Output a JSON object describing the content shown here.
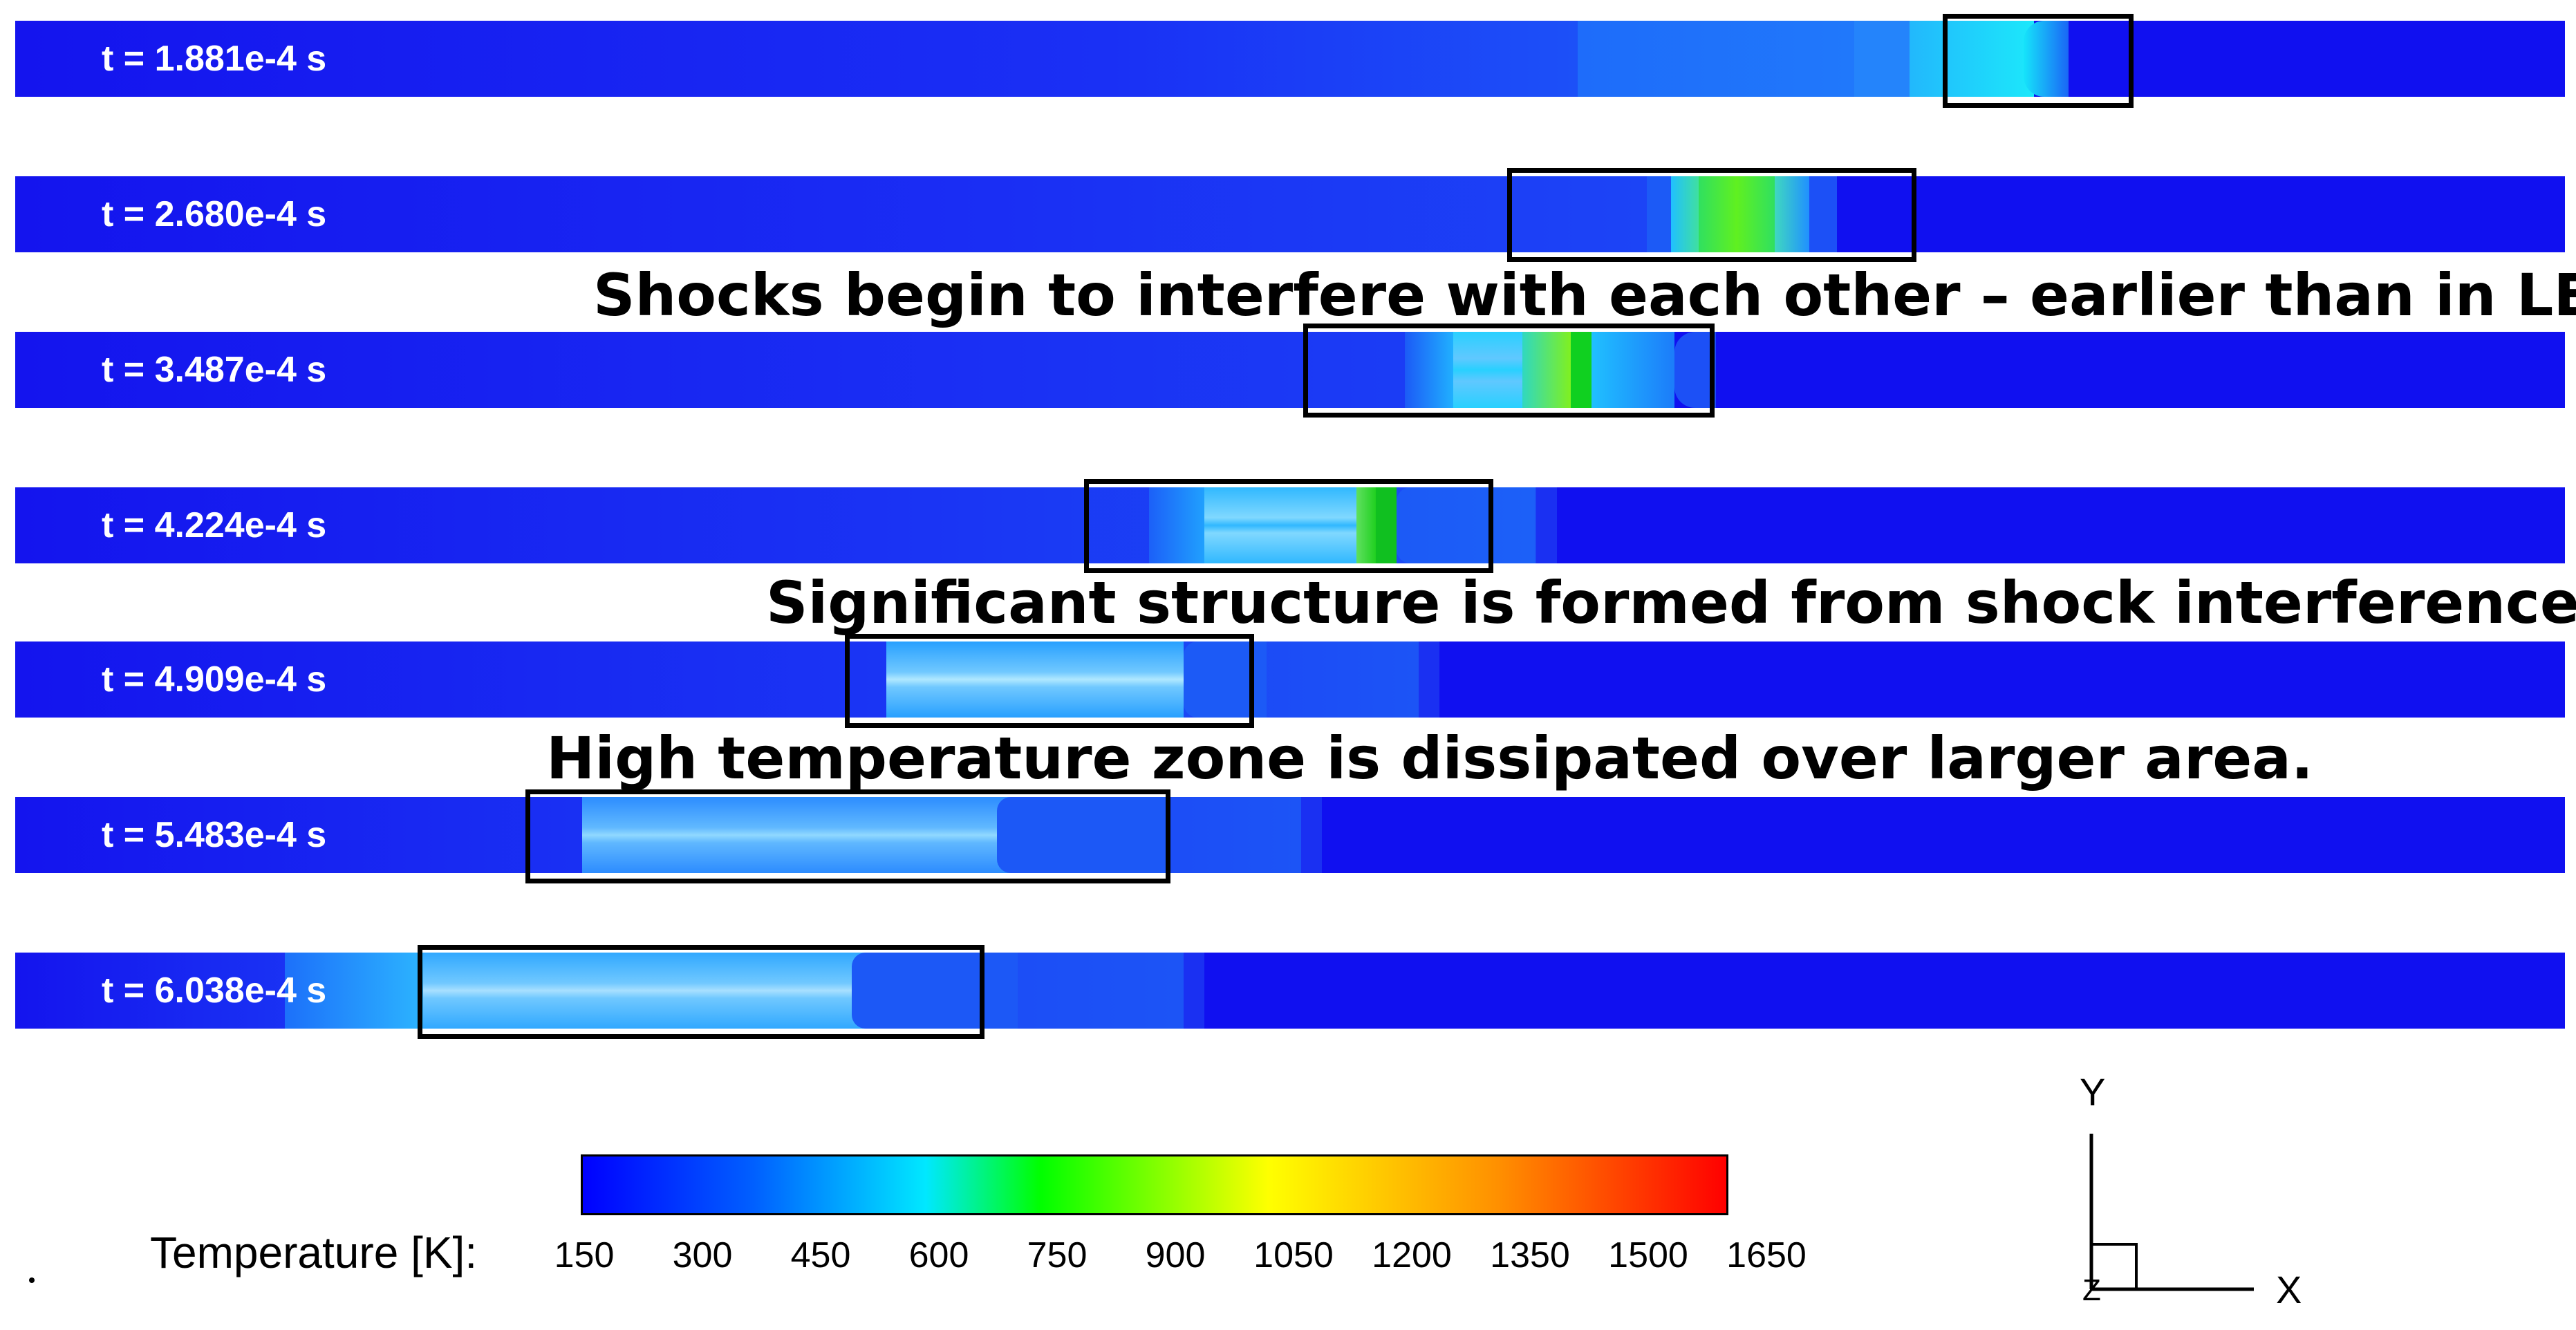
{
  "frames": [
    {
      "time": "t = 1.881e-4 s"
    },
    {
      "time": "t = 2.680e-4 s"
    },
    {
      "time": "t = 3.487e-4 s"
    },
    {
      "time": "t = 4.224e-4 s"
    },
    {
      "time": "t = 4.909e-4 s"
    },
    {
      "time": "t = 5.483e-4 s"
    },
    {
      "time": "t = 6.038e-4 s"
    }
  ],
  "annotations": {
    "shocks": "Shocks begin to interfere with each other – earlier than in LES.",
    "structure": "Significant structure is formed from shock interference.",
    "dissipated": "High temperature zone is dissipated over larger area."
  },
  "colorbar": {
    "title": "Temperature [K]:",
    "ticks": [
      "150",
      "300",
      "450",
      "600",
      "750",
      "900",
      "1050",
      "1200",
      "1350",
      "1500",
      "1650"
    ]
  },
  "axes": {
    "y": "Y",
    "x": "X",
    "z": "Z"
  },
  "colors": {
    "background_field": "#1010f0",
    "colormap": [
      "#0000ff",
      "#0080ff",
      "#00e8ff",
      "#00ff00",
      "#ffff00",
      "#ff8000",
      "#ff0000"
    ]
  }
}
